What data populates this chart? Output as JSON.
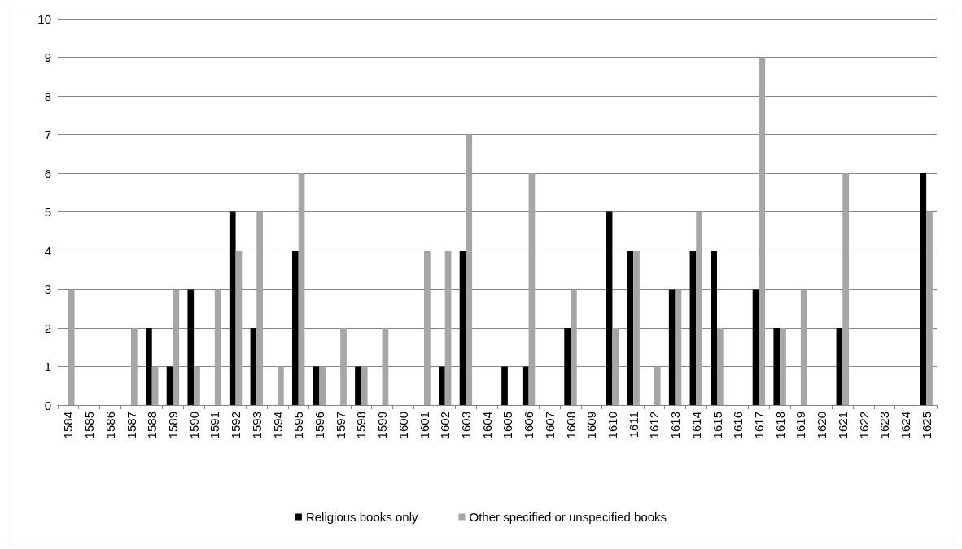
{
  "chart_data": {
    "type": "bar",
    "categories": [
      "1584",
      "1585",
      "1586",
      "1587",
      "1588",
      "1589",
      "1590",
      "1591",
      "1592",
      "1593",
      "1594",
      "1595",
      "1596",
      "1597",
      "1598",
      "1599",
      "1600",
      "1601",
      "1602",
      "1603",
      "1604",
      "1605",
      "1606",
      "1607",
      "1608",
      "1609",
      "1610",
      "1611",
      "1612",
      "1613",
      "1614",
      "1615",
      "1616",
      "1617",
      "1618",
      "1619",
      "1620",
      "1621",
      "1622",
      "1623",
      "1624",
      "1625"
    ],
    "series": [
      {
        "name": "Religious books only",
        "color": "#000000",
        "values": [
          0,
          0,
          0,
          0,
          2,
          1,
          3,
          0,
          5,
          2,
          0,
          4,
          1,
          0,
          1,
          0,
          0,
          0,
          1,
          4,
          0,
          1,
          1,
          0,
          2,
          0,
          5,
          4,
          0,
          3,
          4,
          4,
          0,
          3,
          2,
          0,
          0,
          2,
          0,
          0,
          0,
          6
        ]
      },
      {
        "name": "Other specified or unspecified books",
        "color": "#a6a6a6",
        "values": [
          3,
          0,
          0,
          2,
          1,
          3,
          1,
          3,
          4,
          5,
          1,
          6,
          1,
          2,
          1,
          2,
          0,
          4,
          4,
          7,
          0,
          0,
          6,
          0,
          3,
          0,
          2,
          4,
          1,
          3,
          5,
          2,
          0,
          9,
          2,
          3,
          0,
          6,
          0,
          0,
          0,
          5
        ]
      }
    ],
    "ylim": [
      0,
      10
    ],
    "yticks": [
      0,
      1,
      2,
      3,
      4,
      5,
      6,
      7,
      8,
      9,
      10
    ],
    "grid": "y",
    "legend": "bottom"
  }
}
